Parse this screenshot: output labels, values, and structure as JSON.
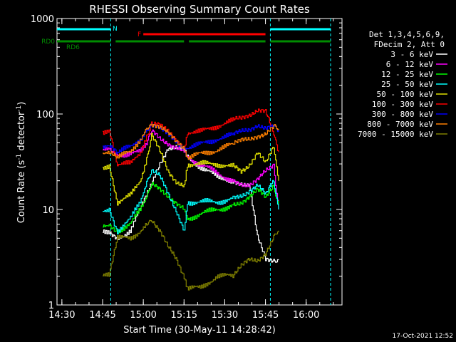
{
  "chart_data": {
    "type": "line",
    "title": "RHESSI Observing Summary Count Rates",
    "xlabel": "Start Time (30-May-11 14:28:42)",
    "ylabel": "Count Rate (s",
    "ylabel_sup": "-1",
    "ylabel_tail": " detector",
    "ylabel_end": ")",
    "yscale": "log",
    "ylim": [
      1,
      1000
    ],
    "xlim_minutes": [
      14.47,
      16.22
    ],
    "x_ticks": [
      "14:30",
      "14:45",
      "15:00",
      "15:15",
      "15:30",
      "15:45",
      "16:00"
    ],
    "y_ticks": [
      "1",
      "10",
      "100",
      "1000"
    ],
    "timestamp": "17-Oct-2021 12:52",
    "legend": {
      "header": [
        "Det 1,3,4,5,6,9,",
        "FDecim 2, Att 0"
      ],
      "position": "right"
    },
    "flags": [
      {
        "label": "N",
        "color": "#00ffff",
        "segments": [
          [
            14.47,
            14.8
          ],
          [
            15.78,
            16.15
          ]
        ]
      },
      {
        "label": "F",
        "color": "#ff0000",
        "segments": [
          [
            15.0,
            15.75
          ]
        ]
      },
      {
        "label": "RD0",
        "color": "#008c00",
        "segments": [
          [
            14.47,
            14.8
          ],
          [
            14.83,
            15.25
          ],
          [
            15.28,
            15.75
          ],
          [
            15.78,
            16.15
          ]
        ]
      },
      {
        "label": "RD6",
        "color": "#008c00",
        "segments": []
      }
    ],
    "night_lines_minutes": [
      14.8,
      15.78,
      16.15
    ],
    "series": [
      {
        "name": "3 - 6 keV",
        "color": "#ffffff",
        "x": [
          14.75,
          14.79,
          14.84,
          14.92,
          14.98,
          15.05,
          15.1,
          15.15,
          15.2,
          15.25,
          15.27,
          15.35,
          15.45,
          15.55,
          15.6,
          15.65,
          15.7,
          15.75,
          15.8,
          15.83
        ],
        "y": [
          6,
          6,
          5,
          6,
          10,
          18,
          30,
          45,
          45,
          40,
          35,
          28,
          22,
          20,
          19,
          18,
          5,
          3,
          3,
          3
        ]
      },
      {
        "name": "6 - 12 keV",
        "color": "#ff00ff",
        "x": [
          14.75,
          14.79,
          14.84,
          14.92,
          14.98,
          15.02,
          15.05,
          15.1,
          15.15,
          15.2,
          15.25,
          15.27,
          15.35,
          15.45,
          15.55,
          15.6,
          15.65,
          15.7,
          15.75,
          15.8,
          15.83
        ],
        "y": [
          45,
          45,
          38,
          38,
          40,
          50,
          65,
          55,
          50,
          45,
          40,
          35,
          30,
          24,
          20,
          19,
          18,
          20,
          25,
          30,
          10
        ]
      },
      {
        "name": "12 - 25 keV",
        "color": "#00ff00",
        "x": [
          14.75,
          14.79,
          14.84,
          14.92,
          14.98,
          15.02,
          15.05,
          15.1,
          15.15,
          15.2,
          15.25,
          15.27,
          15.35,
          15.45,
          15.55,
          15.6,
          15.65,
          15.7,
          15.75,
          15.8,
          15.83
        ],
        "y": [
          7,
          7,
          6,
          7,
          10,
          14,
          18,
          16,
          14,
          12,
          10,
          8,
          9,
          10,
          11,
          12,
          14,
          16,
          13,
          18,
          11
        ]
      },
      {
        "name": "25 - 50 keV",
        "color": "#00ffff",
        "x": [
          14.75,
          14.79,
          14.84,
          14.92,
          14.98,
          15.02,
          15.05,
          15.1,
          15.15,
          15.2,
          15.25,
          15.27,
          15.35,
          15.45,
          15.55,
          15.6,
          15.65,
          15.7,
          15.75,
          15.8,
          15.83
        ],
        "y": [
          10,
          10,
          6,
          8,
          12,
          20,
          25,
          22,
          15,
          10,
          6,
          12,
          12,
          12,
          13,
          14,
          16,
          18,
          14,
          20,
          10
        ]
      },
      {
        "name": "50 - 100 keV",
        "color": "#e0e000",
        "x": [
          14.75,
          14.79,
          14.84,
          14.92,
          14.98,
          15.02,
          15.05,
          15.1,
          15.15,
          15.2,
          15.25,
          15.27,
          15.35,
          15.45,
          15.55,
          15.6,
          15.65,
          15.7,
          15.75,
          15.8,
          15.83
        ],
        "y": [
          28,
          28,
          12,
          14,
          20,
          35,
          60,
          40,
          25,
          20,
          18,
          30,
          30,
          30,
          28,
          25,
          30,
          40,
          30,
          45,
          20
        ]
      },
      {
        "name": "100 - 300 keV",
        "color": "#ff0000",
        "x": [
          14.75,
          14.79,
          14.84,
          14.92,
          14.98,
          15.02,
          15.05,
          15.1,
          15.15,
          15.2,
          15.25,
          15.27,
          15.35,
          15.45,
          15.55,
          15.6,
          15.65,
          15.7,
          15.75,
          15.8,
          15.83
        ],
        "y": [
          65,
          65,
          30,
          30,
          40,
          60,
          80,
          75,
          65,
          55,
          45,
          65,
          65,
          75,
          85,
          90,
          100,
          112,
          105,
          60,
          40
        ]
      },
      {
        "name": "300 - 800 keV",
        "color": "#0000ff",
        "x": [
          14.75,
          14.79,
          14.84,
          14.92,
          14.98,
          15.02,
          15.05,
          15.1,
          15.15,
          15.2,
          15.25,
          15.27,
          15.35,
          15.45,
          15.55,
          15.6,
          15.65,
          15.7,
          15.75,
          15.8,
          15.83
        ],
        "y": [
          45,
          45,
          40,
          45,
          55,
          70,
          78,
          70,
          60,
          52,
          45,
          45,
          48,
          55,
          60,
          65,
          70,
          78,
          70,
          72,
          68
        ]
      },
      {
        "name": "800 - 7000 keV",
        "color": "#ff8000",
        "x": [
          14.75,
          14.79,
          14.84,
          14.92,
          14.98,
          15.02,
          15.05,
          15.1,
          15.15,
          15.2,
          15.25,
          15.27,
          15.35,
          15.45,
          15.55,
          15.6,
          15.65,
          15.7,
          15.75,
          15.8,
          15.83
        ],
        "y": [
          38,
          38,
          35,
          40,
          55,
          72,
          80,
          72,
          62,
          52,
          45,
          35,
          38,
          42,
          48,
          52,
          55,
          60,
          62,
          72,
          70
        ]
      },
      {
        "name": "7000 - 15000 keV",
        "color": "#808000",
        "x": [
          14.75,
          14.79,
          14.84,
          14.92,
          14.98,
          15.02,
          15.05,
          15.1,
          15.15,
          15.2,
          15.25,
          15.27,
          15.35,
          15.45,
          15.55,
          15.6,
          15.65,
          15.7,
          15.75,
          15.8,
          15.83
        ],
        "y": [
          2,
          2,
          5,
          5,
          6,
          7,
          8,
          6,
          4,
          3,
          2,
          1.5,
          1.5,
          2,
          2,
          2.5,
          3,
          3,
          3.5,
          5,
          6
        ]
      }
    ]
  }
}
